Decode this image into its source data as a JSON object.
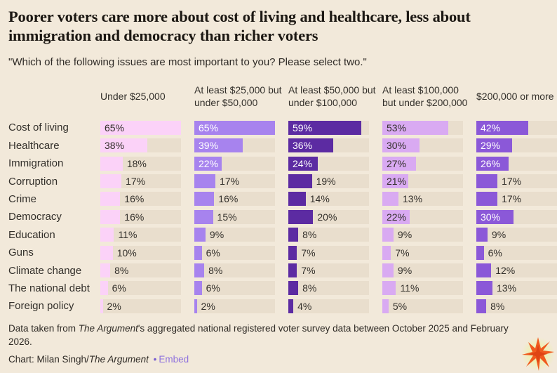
{
  "page": {
    "background": "#f2e9da",
    "track_color": "#e9decd",
    "text_color": "#33302b",
    "title_color": "#1c1813"
  },
  "title": "Poorer voters care more about cost of living and healthcare, less about immigration and democracy than richer voters",
  "subtitle": "\"Which of the following issues are most important to you? Please select two.\"",
  "chart_data": {
    "type": "bar",
    "orientation": "horizontal",
    "unit": "%",
    "scale_max": 65,
    "inside_label_threshold": 21,
    "grid": false,
    "categories": [
      "Cost of living",
      "Healthcare",
      "Immigration",
      "Corruption",
      "Crime",
      "Democracy",
      "Education",
      "Guns",
      "Climate change",
      "The national debt",
      "Foreign policy"
    ],
    "series": [
      {
        "name": "Under $25,000",
        "color": "#fbd2f8",
        "inside_label_color": "#33302b",
        "values": [
          65,
          38,
          18,
          17,
          16,
          16,
          11,
          10,
          8,
          6,
          2
        ]
      },
      {
        "name": "At least $25,000 but under $50,000",
        "color": "#a783ee",
        "inside_label_color": "#ffffff",
        "values": [
          65,
          39,
          22,
          17,
          16,
          15,
          9,
          6,
          8,
          6,
          2
        ]
      },
      {
        "name": "At least $50,000 but under $100,000",
        "color": "#5c2ba2",
        "inside_label_color": "#ffffff",
        "values": [
          59,
          36,
          24,
          19,
          14,
          20,
          8,
          7,
          7,
          8,
          4
        ]
      },
      {
        "name": "At least $100,000 but under $200,000",
        "color": "#d9aaf2",
        "inside_label_color": "#33302b",
        "values": [
          53,
          30,
          27,
          21,
          13,
          22,
          9,
          7,
          9,
          11,
          5
        ]
      },
      {
        "name": "$200,000 or more",
        "color": "#8b58d8",
        "inside_label_color": "#ffffff",
        "values": [
          42,
          29,
          26,
          17,
          17,
          30,
          9,
          6,
          12,
          13,
          8
        ]
      }
    ]
  },
  "footer": {
    "source_prefix": "Data taken from ",
    "source_italic": "The Argument",
    "source_suffix": "'s aggregated national registered voter survey data between October 2025 and February 2026.",
    "credit_prefix": "Chart: Milan Singh/",
    "credit_italic": "The Argument",
    "separator": "•",
    "embed_label": "Embed",
    "link_color": "#8f72dd"
  },
  "logo": {
    "semantic": "starburst-logo",
    "primary_color": "#f05a1e",
    "accent_color": "#d93d12",
    "glow_color": "#edf2a4"
  }
}
